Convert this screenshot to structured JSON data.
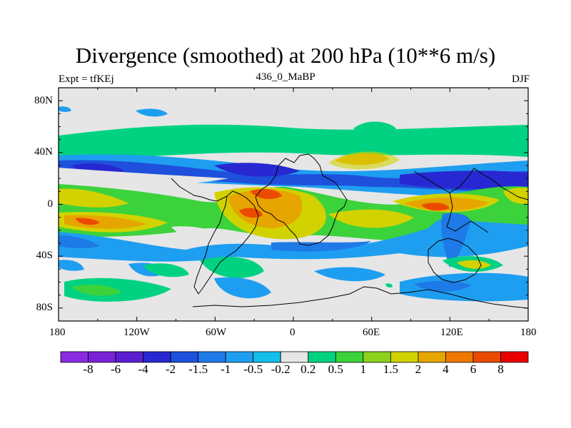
{
  "header": {
    "title": "Divergence (smoothed) at 200 hPa (10**6 m/s)",
    "left": "Expt = tfKEj",
    "center": "436_0_MaBP",
    "right": "DJF"
  },
  "map": {
    "lat_labels": [
      "80N",
      "40N",
      "0",
      "40S",
      "80S"
    ],
    "lon_labels": [
      "180",
      "120W",
      "60W",
      "0",
      "60E",
      "120E",
      "180"
    ],
    "background_color": "#e6e6e6"
  },
  "colorbar": {
    "labels": [
      "-8",
      "-6",
      "-4",
      "-2",
      "-1.5",
      "-1",
      "-0.5",
      "-0.2",
      "0.2",
      "0.5",
      "1",
      "1.5",
      "2",
      "4",
      "6",
      "8"
    ],
    "colors": [
      "#8a2be2",
      "#7a22d6",
      "#5a1fd0",
      "#2828d2",
      "#1e50dc",
      "#1e7ae6",
      "#1e9ef0",
      "#14beeb",
      "#e6e6e6",
      "#00d282",
      "#3cd23c",
      "#8cd21e",
      "#d2d200",
      "#e6a500",
      "#f07800",
      "#eb4b00",
      "#eb0000"
    ]
  }
}
